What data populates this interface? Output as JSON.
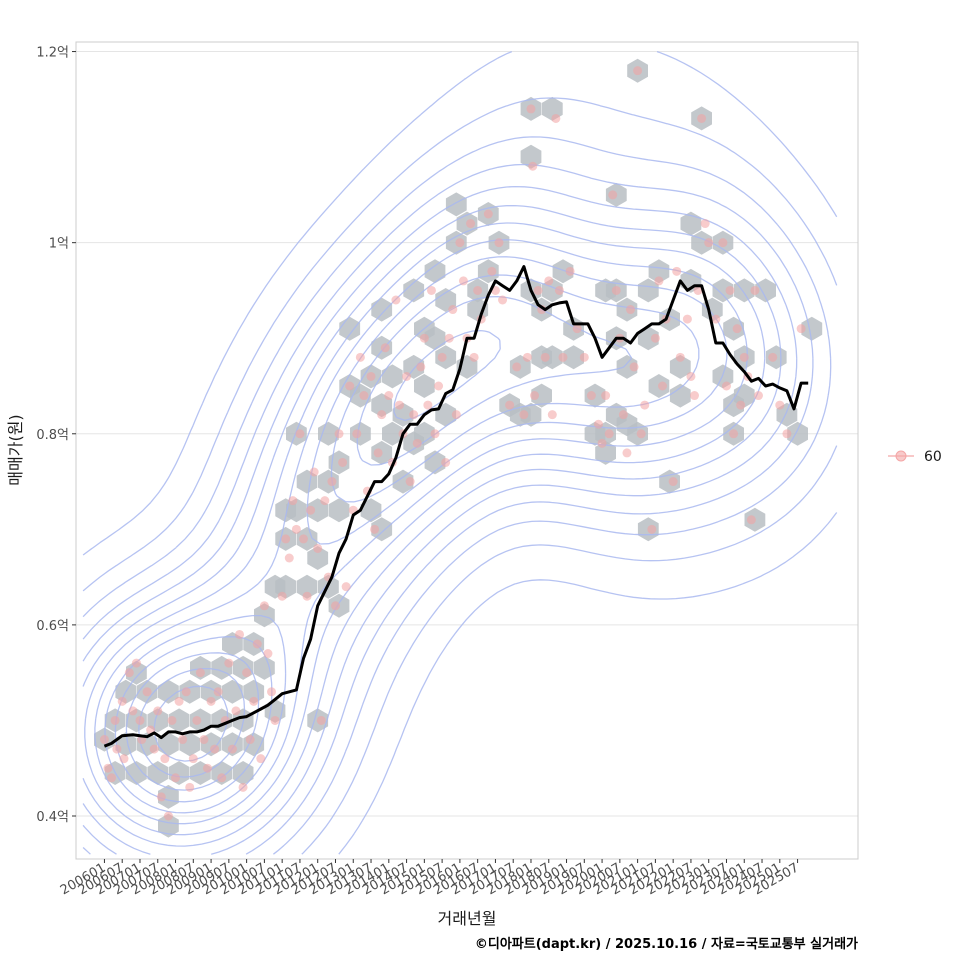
{
  "chart_data": {
    "type": "scatter",
    "xlabel": "거래년월",
    "ylabel": "매매가(원)",
    "caption": "©디아파트(dapt.kr) / 2025.10.16 / 자료=국토교통부 실거래가",
    "ylim": [
      0.355,
      1.21
    ],
    "xlim": [
      2005.2,
      2027.2
    ],
    "y_ticks": [
      {
        "value": 0.4,
        "label": "0.4억"
      },
      {
        "value": 0.6,
        "label": "0.6억"
      },
      {
        "value": 0.8,
        "label": "0.8억"
      },
      {
        "value": 1.0,
        "label": "1억"
      },
      {
        "value": 1.2,
        "label": "1.2억"
      }
    ],
    "x_ticks": [
      "200601",
      "200607",
      "200701",
      "200707",
      "200801",
      "200807",
      "200901",
      "200907",
      "201001",
      "201007",
      "201101",
      "201107",
      "201201",
      "201207",
      "201301",
      "201307",
      "201401",
      "201407",
      "201501",
      "201507",
      "201601",
      "201607",
      "201701",
      "201707",
      "201801",
      "201807",
      "201901",
      "201907",
      "202001",
      "202007",
      "202101",
      "202107",
      "202201",
      "202207",
      "202301",
      "202307",
      "202401",
      "202407",
      "202501",
      "202507"
    ],
    "legend": {
      "label": "60",
      "color": "#f4a6a6",
      "position": "right"
    },
    "colors": {
      "hex": "#b9bec3",
      "point": "#f2a3a3",
      "line": "#000000",
      "contour": "#a9b8f0",
      "grid": "#e5e5e5",
      "panel_border": "#cccccc"
    },
    "trend_line": {
      "name": "moving average",
      "x": [
        2006.0,
        2006.2,
        2006.5,
        2006.8,
        2007.0,
        2007.2,
        2007.4,
        2007.6,
        2007.8,
        2008.0,
        2008.2,
        2008.4,
        2008.6,
        2008.8,
        2009.0,
        2009.2,
        2009.4,
        2009.6,
        2009.8,
        2010.0,
        2010.2,
        2010.4,
        2010.6,
        2010.8,
        2011.0,
        2011.2,
        2011.4,
        2011.6,
        2011.8,
        2012.0,
        2012.2,
        2012.4,
        2012.6,
        2012.8,
        2013.0,
        2013.2,
        2013.4,
        2013.6,
        2013.8,
        2014.0,
        2014.2,
        2014.4,
        2014.6,
        2014.8,
        2015.0,
        2015.2,
        2015.4,
        2015.6,
        2015.8,
        2016.0,
        2016.2,
        2016.4,
        2016.6,
        2016.8,
        2017.0,
        2017.2,
        2017.4,
        2017.6,
        2017.8,
        2018.0,
        2018.2,
        2018.4,
        2018.6,
        2018.8,
        2019.0,
        2019.2,
        2019.4,
        2019.6,
        2019.8,
        2020.0,
        2020.2,
        2020.4,
        2020.6,
        2020.8,
        2021.0,
        2021.2,
        2021.4,
        2021.6,
        2021.8,
        2022.0,
        2022.2,
        2022.4,
        2022.6,
        2022.8,
        2023.0,
        2023.2,
        2023.4,
        2023.6,
        2023.8,
        2024.0,
        2024.2,
        2024.4,
        2024.6,
        2024.8,
        2025.0,
        2025.2,
        2025.4,
        2025.6,
        2025.8
      ],
      "y": [
        0.473,
        0.476,
        0.484,
        0.485,
        0.484,
        0.483,
        0.487,
        0.482,
        0.488,
        0.488,
        0.486,
        0.488,
        0.488,
        0.49,
        0.494,
        0.494,
        0.497,
        0.5,
        0.503,
        0.504,
        0.508,
        0.512,
        0.516,
        0.522,
        0.528,
        0.53,
        0.532,
        0.565,
        0.585,
        0.62,
        0.635,
        0.65,
        0.675,
        0.69,
        0.715,
        0.72,
        0.735,
        0.75,
        0.75,
        0.758,
        0.775,
        0.8,
        0.81,
        0.81,
        0.82,
        0.825,
        0.826,
        0.842,
        0.846,
        0.868,
        0.9,
        0.9,
        0.925,
        0.945,
        0.96,
        0.955,
        0.95,
        0.96,
        0.975,
        0.95,
        0.935,
        0.93,
        0.935,
        0.937,
        0.938,
        0.915,
        0.915,
        0.915,
        0.9,
        0.88,
        0.89,
        0.9,
        0.9,
        0.895,
        0.905,
        0.91,
        0.915,
        0.915,
        0.92,
        0.94,
        0.96,
        0.95,
        0.955,
        0.955,
        0.93,
        0.895,
        0.895,
        0.883,
        0.873,
        0.865,
        0.855,
        0.858,
        0.85,
        0.852,
        0.848,
        0.845,
        0.826,
        0.853,
        0.853
      ]
    },
    "points": [
      [
        2006.0,
        0.48
      ],
      [
        2006.1,
        0.45
      ],
      [
        2006.2,
        0.44
      ],
      [
        2006.3,
        0.5
      ],
      [
        2006.35,
        0.47
      ],
      [
        2006.5,
        0.52
      ],
      [
        2006.55,
        0.46
      ],
      [
        2006.7,
        0.55
      ],
      [
        2006.8,
        0.51
      ],
      [
        2006.9,
        0.56
      ],
      [
        2007.0,
        0.5
      ],
      [
        2007.05,
        0.48
      ],
      [
        2007.2,
        0.53
      ],
      [
        2007.3,
        0.49
      ],
      [
        2007.4,
        0.47
      ],
      [
        2007.5,
        0.51
      ],
      [
        2007.6,
        0.42
      ],
      [
        2007.7,
        0.46
      ],
      [
        2007.8,
        0.4
      ],
      [
        2007.9,
        0.5
      ],
      [
        2008.0,
        0.44
      ],
      [
        2008.1,
        0.52
      ],
      [
        2008.2,
        0.48
      ],
      [
        2008.3,
        0.53
      ],
      [
        2008.4,
        0.43
      ],
      [
        2008.5,
        0.46
      ],
      [
        2008.6,
        0.5
      ],
      [
        2008.7,
        0.55
      ],
      [
        2008.8,
        0.48
      ],
      [
        2008.9,
        0.45
      ],
      [
        2009.0,
        0.52
      ],
      [
        2009.1,
        0.47
      ],
      [
        2009.2,
        0.53
      ],
      [
        2009.3,
        0.44
      ],
      [
        2009.4,
        0.5
      ],
      [
        2009.5,
        0.56
      ],
      [
        2009.6,
        0.47
      ],
      [
        2009.7,
        0.51
      ],
      [
        2009.8,
        0.59
      ],
      [
        2009.9,
        0.43
      ],
      [
        2010.0,
        0.55
      ],
      [
        2010.1,
        0.48
      ],
      [
        2010.2,
        0.52
      ],
      [
        2010.3,
        0.58
      ],
      [
        2010.4,
        0.46
      ],
      [
        2010.5,
        0.62
      ],
      [
        2010.6,
        0.57
      ],
      [
        2010.7,
        0.53
      ],
      [
        2010.8,
        0.5
      ],
      [
        2011.0,
        0.63
      ],
      [
        2011.1,
        0.69
      ],
      [
        2011.2,
        0.67
      ],
      [
        2011.3,
        0.73
      ],
      [
        2011.4,
        0.7
      ],
      [
        2011.5,
        0.8
      ],
      [
        2011.6,
        0.69
      ],
      [
        2011.7,
        0.63
      ],
      [
        2011.8,
        0.72
      ],
      [
        2011.9,
        0.76
      ],
      [
        2012.0,
        0.68
      ],
      [
        2012.1,
        0.5
      ],
      [
        2012.2,
        0.73
      ],
      [
        2012.3,
        0.65
      ],
      [
        2012.4,
        0.75
      ],
      [
        2012.5,
        0.62
      ],
      [
        2012.6,
        0.8
      ],
      [
        2012.7,
        0.77
      ],
      [
        2012.8,
        0.64
      ],
      [
        2012.9,
        0.85
      ],
      [
        2013.0,
        0.72
      ],
      [
        2013.1,
        0.8
      ],
      [
        2013.2,
        0.88
      ],
      [
        2013.3,
        0.84
      ],
      [
        2013.4,
        0.74
      ],
      [
        2013.5,
        0.86
      ],
      [
        2013.6,
        0.7
      ],
      [
        2013.7,
        0.78
      ],
      [
        2013.8,
        0.82
      ],
      [
        2013.9,
        0.89
      ],
      [
        2014.0,
        0.84
      ],
      [
        2014.1,
        0.77
      ],
      [
        2014.2,
        0.94
      ],
      [
        2014.3,
        0.83
      ],
      [
        2014.4,
        0.8
      ],
      [
        2014.5,
        0.86
      ],
      [
        2014.6,
        0.75
      ],
      [
        2014.7,
        0.82
      ],
      [
        2014.8,
        0.79
      ],
      [
        2014.9,
        0.87
      ],
      [
        2015.0,
        0.9
      ],
      [
        2015.1,
        0.83
      ],
      [
        2015.2,
        0.95
      ],
      [
        2015.3,
        0.8
      ],
      [
        2015.4,
        0.85
      ],
      [
        2015.5,
        0.88
      ],
      [
        2015.6,
        0.77
      ],
      [
        2015.7,
        0.9
      ],
      [
        2015.8,
        0.93
      ],
      [
        2015.9,
        0.82
      ],
      [
        2016.0,
        1.0
      ],
      [
        2016.1,
        0.96
      ],
      [
        2016.2,
        0.9
      ],
      [
        2016.3,
        1.02
      ],
      [
        2016.4,
        0.88
      ],
      [
        2016.5,
        0.95
      ],
      [
        2016.6,
        0.92
      ],
      [
        2016.8,
        1.03
      ],
      [
        2016.9,
        0.97
      ],
      [
        2017.0,
        0.95
      ],
      [
        2017.1,
        1.0
      ],
      [
        2017.2,
        0.94
      ],
      [
        2017.4,
        0.83
      ],
      [
        2017.6,
        0.87
      ],
      [
        2017.8,
        0.82
      ],
      [
        2017.9,
        0.88
      ],
      [
        2018.0,
        1.14
      ],
      [
        2018.05,
        1.08
      ],
      [
        2018.1,
        0.84
      ],
      [
        2018.2,
        0.95
      ],
      [
        2018.3,
        0.93
      ],
      [
        2018.4,
        0.88
      ],
      [
        2018.5,
        0.96
      ],
      [
        2018.6,
        0.82
      ],
      [
        2018.7,
        1.13
      ],
      [
        2018.8,
        0.95
      ],
      [
        2018.9,
        0.88
      ],
      [
        2019.1,
        0.97
      ],
      [
        2019.3,
        0.91
      ],
      [
        2019.5,
        0.88
      ],
      [
        2019.7,
        0.84
      ],
      [
        2019.9,
        0.81
      ],
      [
        2020.0,
        0.79
      ],
      [
        2020.1,
        0.84
      ],
      [
        2020.2,
        0.8
      ],
      [
        2020.3,
        1.05
      ],
      [
        2020.4,
        0.95
      ],
      [
        2020.5,
        0.9
      ],
      [
        2020.6,
        0.82
      ],
      [
        2020.7,
        0.78
      ],
      [
        2020.8,
        0.93
      ],
      [
        2020.9,
        0.87
      ],
      [
        2021.0,
        1.18
      ],
      [
        2021.1,
        0.8
      ],
      [
        2021.2,
        0.83
      ],
      [
        2021.4,
        0.7
      ],
      [
        2021.5,
        0.9
      ],
      [
        2021.6,
        0.96
      ],
      [
        2021.7,
        0.85
      ],
      [
        2021.8,
        0.92
      ],
      [
        2022.0,
        0.75
      ],
      [
        2022.1,
        0.97
      ],
      [
        2022.2,
        0.88
      ],
      [
        2022.4,
        0.92
      ],
      [
        2022.5,
        0.86
      ],
      [
        2022.6,
        0.84
      ],
      [
        2022.7,
        0.95
      ],
      [
        2022.8,
        1.13
      ],
      [
        2022.9,
        1.02
      ],
      [
        2023.0,
        1.0
      ],
      [
        2023.2,
        0.92
      ],
      [
        2023.4,
        1.0
      ],
      [
        2023.5,
        0.85
      ],
      [
        2023.6,
        0.95
      ],
      [
        2023.7,
        0.8
      ],
      [
        2023.8,
        0.91
      ],
      [
        2023.9,
        0.83
      ],
      [
        2024.0,
        0.88
      ],
      [
        2024.1,
        0.86
      ],
      [
        2024.2,
        0.71
      ],
      [
        2024.3,
        0.95
      ],
      [
        2024.4,
        0.84
      ],
      [
        2024.8,
        0.88
      ],
      [
        2025.0,
        0.83
      ],
      [
        2025.2,
        0.8
      ],
      [
        2025.6,
        0.91
      ]
    ],
    "hex_bins": [
      [
        2006.0,
        0.48
      ],
      [
        2006.3,
        0.5
      ],
      [
        2006.3,
        0.445
      ],
      [
        2006.6,
        0.53
      ],
      [
        2006.6,
        0.475
      ],
      [
        2006.9,
        0.55
      ],
      [
        2006.9,
        0.5
      ],
      [
        2006.9,
        0.445
      ],
      [
        2007.2,
        0.53
      ],
      [
        2007.2,
        0.475
      ],
      [
        2007.5,
        0.5
      ],
      [
        2007.5,
        0.445
      ],
      [
        2007.8,
        0.53
      ],
      [
        2007.8,
        0.475
      ],
      [
        2007.8,
        0.42
      ],
      [
        2007.8,
        0.39
      ],
      [
        2008.1,
        0.5
      ],
      [
        2008.1,
        0.445
      ],
      [
        2008.4,
        0.53
      ],
      [
        2008.4,
        0.475
      ],
      [
        2008.7,
        0.555
      ],
      [
        2008.7,
        0.5
      ],
      [
        2008.7,
        0.445
      ],
      [
        2009.0,
        0.53
      ],
      [
        2009.0,
        0.475
      ],
      [
        2009.3,
        0.555
      ],
      [
        2009.3,
        0.5
      ],
      [
        2009.3,
        0.445
      ],
      [
        2009.6,
        0.58
      ],
      [
        2009.6,
        0.53
      ],
      [
        2009.6,
        0.475
      ],
      [
        2009.9,
        0.555
      ],
      [
        2009.9,
        0.5
      ],
      [
        2009.9,
        0.445
      ],
      [
        2010.2,
        0.58
      ],
      [
        2010.2,
        0.53
      ],
      [
        2010.2,
        0.475
      ],
      [
        2010.5,
        0.61
      ],
      [
        2010.5,
        0.555
      ],
      [
        2010.8,
        0.64
      ],
      [
        2010.8,
        0.51
      ],
      [
        2011.1,
        0.72
      ],
      [
        2011.1,
        0.69
      ],
      [
        2011.1,
        0.64
      ],
      [
        2011.4,
        0.72
      ],
      [
        2011.4,
        0.8
      ],
      [
        2011.7,
        0.69
      ],
      [
        2011.7,
        0.75
      ],
      [
        2011.7,
        0.64
      ],
      [
        2012.0,
        0.72
      ],
      [
        2012.0,
        0.67
      ],
      [
        2012.0,
        0.5
      ],
      [
        2012.3,
        0.64
      ],
      [
        2012.3,
        0.75
      ],
      [
        2012.3,
        0.8
      ],
      [
        2012.6,
        0.62
      ],
      [
        2012.6,
        0.72
      ],
      [
        2012.6,
        0.77
      ],
      [
        2012.9,
        0.85
      ],
      [
        2012.9,
        0.91
      ],
      [
        2013.2,
        0.84
      ],
      [
        2013.2,
        0.8
      ],
      [
        2013.5,
        0.86
      ],
      [
        2013.5,
        0.72
      ],
      [
        2013.8,
        0.7
      ],
      [
        2013.8,
        0.78
      ],
      [
        2013.8,
        0.83
      ],
      [
        2013.8,
        0.89
      ],
      [
        2013.8,
        0.93
      ],
      [
        2014.1,
        0.8
      ],
      [
        2014.1,
        0.86
      ],
      [
        2014.4,
        0.75
      ],
      [
        2014.4,
        0.82
      ],
      [
        2014.7,
        0.87
      ],
      [
        2014.7,
        0.95
      ],
      [
        2014.7,
        0.79
      ],
      [
        2015.0,
        0.91
      ],
      [
        2015.0,
        0.85
      ],
      [
        2015.0,
        0.8
      ],
      [
        2015.3,
        0.77
      ],
      [
        2015.3,
        0.9
      ],
      [
        2015.3,
        0.97
      ],
      [
        2015.6,
        0.88
      ],
      [
        2015.6,
        0.94
      ],
      [
        2015.6,
        0.82
      ],
      [
        2015.9,
        1.0
      ],
      [
        2015.9,
        1.04
      ],
      [
        2016.2,
        0.87
      ],
      [
        2016.2,
        1.02
      ],
      [
        2016.5,
        0.95
      ],
      [
        2016.5,
        0.93
      ],
      [
        2016.8,
        1.03
      ],
      [
        2016.8,
        0.97
      ],
      [
        2017.1,
        1.0
      ],
      [
        2017.4,
        0.83
      ],
      [
        2017.7,
        0.87
      ],
      [
        2017.7,
        0.82
      ],
      [
        2018.0,
        1.14
      ],
      [
        2018.0,
        1.09
      ],
      [
        2018.0,
        0.95
      ],
      [
        2018.0,
        0.82
      ],
      [
        2018.3,
        0.93
      ],
      [
        2018.3,
        0.88
      ],
      [
        2018.3,
        0.84
      ],
      [
        2018.6,
        1.14
      ],
      [
        2018.6,
        0.95
      ],
      [
        2018.6,
        0.88
      ],
      [
        2018.9,
        0.97
      ],
      [
        2019.2,
        0.91
      ],
      [
        2019.2,
        0.88
      ],
      [
        2019.8,
        0.84
      ],
      [
        2019.8,
        0.8
      ],
      [
        2020.1,
        0.95
      ],
      [
        2020.1,
        0.78
      ],
      [
        2020.1,
        0.8
      ],
      [
        2020.4,
        1.05
      ],
      [
        2020.4,
        0.95
      ],
      [
        2020.4,
        0.9
      ],
      [
        2020.4,
        0.82
      ],
      [
        2020.7,
        0.87
      ],
      [
        2020.7,
        0.81
      ],
      [
        2020.7,
        0.93
      ],
      [
        2021.0,
        1.18
      ],
      [
        2021.0,
        0.8
      ],
      [
        2021.3,
        0.7
      ],
      [
        2021.3,
        0.9
      ],
      [
        2021.3,
        0.95
      ],
      [
        2021.6,
        0.85
      ],
      [
        2021.6,
        0.97
      ],
      [
        2021.9,
        0.75
      ],
      [
        2021.9,
        0.92
      ],
      [
        2022.2,
        0.87
      ],
      [
        2022.2,
        0.84
      ],
      [
        2022.5,
        1.02
      ],
      [
        2022.5,
        0.96
      ],
      [
        2022.8,
        1.13
      ],
      [
        2022.8,
        1.0
      ],
      [
        2023.1,
        0.93
      ],
      [
        2023.4,
        1.0
      ],
      [
        2023.4,
        0.95
      ],
      [
        2023.4,
        0.86
      ],
      [
        2023.7,
        0.91
      ],
      [
        2023.7,
        0.83
      ],
      [
        2023.7,
        0.8
      ],
      [
        2024.0,
        0.95
      ],
      [
        2024.0,
        0.88
      ],
      [
        2024.0,
        0.84
      ],
      [
        2024.3,
        0.71
      ],
      [
        2024.6,
        0.95
      ],
      [
        2024.9,
        0.88
      ],
      [
        2025.2,
        0.82
      ],
      [
        2025.5,
        0.8
      ],
      [
        2025.9,
        0.91
      ]
    ]
  }
}
